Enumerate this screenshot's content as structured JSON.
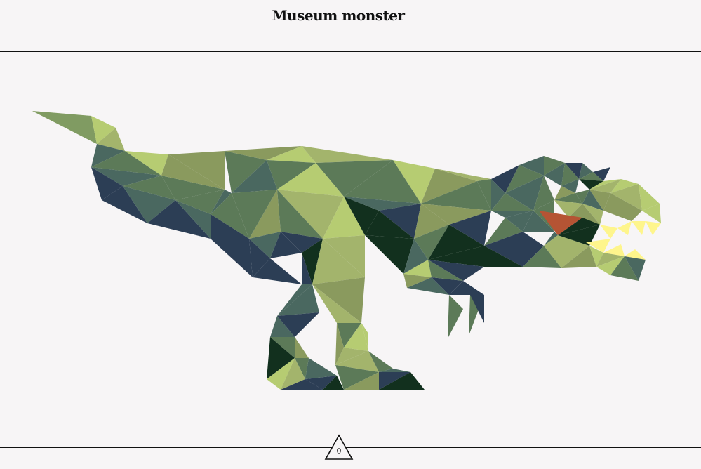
{
  "header": {
    "title": "Museum monster"
  },
  "palette": {
    "light_green": "#b6cc72",
    "olive": "#8a9a5e",
    "sage": "#a3b46c",
    "mid_green": "#5c7a58",
    "teal": "#4a6860",
    "navy": "#2c3e55",
    "dark": "#12301e",
    "tongue": "#b55434",
    "teeth": "#fef58c"
  },
  "footer": {
    "counter_value": "0",
    "counter_icon": "triangle-icon"
  }
}
